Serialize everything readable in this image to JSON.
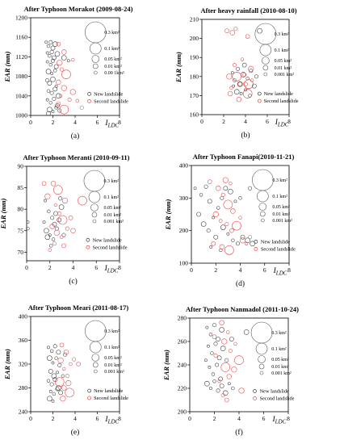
{
  "chart_data": [
    {
      "type": "scatter",
      "title": "After Typhoon Morakot (2009-08-24)",
      "caption": "(a)",
      "xlabel_main": "I",
      "xlabel_sub": "LDC",
      "ylabel": "EAR (mm)",
      "xlim": [
        0,
        8
      ],
      "ylim": [
        1000,
        1200
      ],
      "xticks": [
        0,
        2,
        4,
        6,
        8
      ],
      "yticks": [
        1000,
        1040,
        1080,
        1120,
        1160,
        1200
      ],
      "size_legend": [
        "0.3 km²",
        "0.1 km²",
        "0.05 km²",
        "0.01 km²",
        "0.00 1km²"
      ],
      "legend": [
        {
          "name": "New landslide",
          "color": "#333333"
        },
        {
          "name": "Second landslide",
          "color": "#e84040"
        }
      ],
      "new_landslide": [
        [
          1.4,
          1150
        ],
        [
          1.6,
          1142
        ],
        [
          1.8,
          1150
        ],
        [
          2.0,
          1138
        ],
        [
          2.2,
          1146
        ],
        [
          1.5,
          1128
        ],
        [
          1.7,
          1122
        ],
        [
          1.9,
          1130
        ],
        [
          2.1,
          1118
        ],
        [
          2.4,
          1126
        ],
        [
          1.5,
          1110
        ],
        [
          1.8,
          1104
        ],
        [
          2.0,
          1112
        ],
        [
          2.3,
          1100
        ],
        [
          1.6,
          1090
        ],
        [
          1.9,
          1086
        ],
        [
          2.2,
          1092
        ],
        [
          1.5,
          1072
        ],
        [
          1.7,
          1066
        ],
        [
          2.0,
          1074
        ],
        [
          2.3,
          1060
        ],
        [
          1.6,
          1050
        ],
        [
          1.9,
          1046
        ],
        [
          2.2,
          1054
        ],
        [
          2.5,
          1040
        ],
        [
          1.5,
          1032
        ],
        [
          1.8,
          1026
        ],
        [
          2.1,
          1034
        ],
        [
          2.4,
          1020
        ],
        [
          1.7,
          1012
        ],
        [
          2.0,
          1008
        ],
        [
          2.3,
          1016
        ],
        [
          2.6,
          1010
        ],
        [
          1.6,
          1004
        ],
        [
          3.0,
          1118
        ],
        [
          3.4,
          1112
        ]
      ],
      "second_landslide": [
        [
          2.5,
          1146
        ],
        [
          3.0,
          1130
        ],
        [
          2.6,
          1108
        ],
        [
          3.8,
          1114
        ],
        [
          2.8,
          1094
        ],
        [
          3.2,
          1084
        ],
        [
          2.5,
          1068
        ],
        [
          3.0,
          1056
        ],
        [
          2.7,
          1040
        ],
        [
          3.5,
          1032
        ],
        [
          2.5,
          1024
        ],
        [
          3.0,
          1012
        ],
        [
          3.8,
          1048
        ],
        [
          4.2,
          1030
        ],
        [
          4.6,
          1016
        ]
      ]
    },
    {
      "type": "scatter",
      "title": "After heavy rainfall (2010-08-10)",
      "caption": "(b)",
      "xlabel_main": "I",
      "xlabel_sub": "LDC",
      "ylabel": "EAR (mm)",
      "xlim": [
        0,
        8
      ],
      "ylim": [
        160,
        210
      ],
      "xticks": [
        0,
        2,
        4,
        6,
        8
      ],
      "yticks": [
        160,
        170,
        180,
        190,
        200,
        210
      ],
      "size_legend": [
        "0.3 km²",
        "0.1 km²",
        "0.05 km²",
        "0.01 km²",
        "0.001 km²"
      ],
      "legend": [
        {
          "name": "New landslide",
          "color": "#333333"
        },
        {
          "name": "Second landslide",
          "color": "#e84040"
        }
      ],
      "new_landslide": [
        [
          2.8,
          182
        ],
        [
          3.0,
          178
        ],
        [
          3.3,
          184
        ],
        [
          3.5,
          176
        ],
        [
          3.8,
          181
        ],
        [
          4.0,
          173
        ],
        [
          4.2,
          179
        ],
        [
          4.5,
          183
        ],
        [
          4.8,
          175
        ],
        [
          3.2,
          172
        ],
        [
          3.6,
          171
        ],
        [
          4.4,
          170
        ],
        [
          5.0,
          180
        ],
        [
          3.9,
          186
        ],
        [
          5.3,
          204
        ],
        [
          2.9,
          175
        ]
      ],
      "second_landslide": [
        [
          2.3,
          204
        ],
        [
          2.8,
          203
        ],
        [
          2.5,
          180
        ],
        [
          2.7,
          174
        ],
        [
          3.0,
          186
        ],
        [
          3.2,
          180
        ],
        [
          3.4,
          168
        ],
        [
          3.5,
          176
        ],
        [
          3.7,
          189
        ],
        [
          3.9,
          181
        ],
        [
          4.0,
          176
        ],
        [
          4.2,
          171
        ],
        [
          4.5,
          184
        ],
        [
          4.6,
          178
        ],
        [
          3.1,
          205
        ],
        [
          4.2,
          201
        ],
        [
          2.6,
          171
        ],
        [
          4.3,
          176
        ]
      ]
    },
    {
      "type": "scatter",
      "title": "After Typhoon Meranti (2010-09-11)",
      "caption": "(c)",
      "xlabel_main": "I",
      "xlabel_sub": "LDC",
      "ylabel": "EAR (mm)",
      "xlim": [
        0,
        8
      ],
      "ylim": [
        68,
        90
      ],
      "xticks": [
        0,
        2,
        4,
        6,
        8
      ],
      "yticks": [
        70,
        75,
        80,
        85,
        90
      ],
      "size_legend": [
        "0.3 km²",
        "0.1 km²",
        "0.05 km²",
        "0.01 km²",
        "0.001 km²"
      ],
      "legend": [
        {
          "name": "New landslide",
          "color": "#333333"
        },
        {
          "name": "Second landslide",
          "color": "#e84040"
        }
      ],
      "new_landslide": [
        [
          1.6,
          82.0
        ],
        [
          1.9,
          79.5
        ],
        [
          2.2,
          78.0
        ],
        [
          2.4,
          76.5
        ],
        [
          1.7,
          75.0
        ],
        [
          2.0,
          74.0
        ],
        [
          2.3,
          73.0
        ],
        [
          2.6,
          75.5
        ],
        [
          2.8,
          77.5
        ],
        [
          3.0,
          80.5
        ],
        [
          1.5,
          77.0
        ],
        [
          2.1,
          71.5
        ],
        [
          3.2,
          74.0
        ],
        [
          2.5,
          79.0
        ],
        [
          1.8,
          73.5
        ],
        [
          0.1,
          77.0
        ],
        [
          0.1,
          75.5
        ],
        [
          2.9,
          82.5
        ]
      ],
      "second_landslide": [
        [
          1.5,
          86.0
        ],
        [
          2.3,
          86.0
        ],
        [
          1.8,
          83.0
        ],
        [
          2.5,
          81.0
        ],
        [
          2.8,
          79.0
        ],
        [
          3.1,
          77.5
        ],
        [
          2.2,
          76.0
        ],
        [
          2.6,
          74.5
        ],
        [
          3.0,
          73.5
        ],
        [
          3.5,
          75.5
        ],
        [
          3.8,
          78.0
        ],
        [
          4.8,
          82.0
        ],
        [
          3.3,
          82.0
        ],
        [
          2.0,
          70.5
        ],
        [
          2.4,
          72.0
        ],
        [
          3.2,
          71.5
        ],
        [
          4.0,
          75.0
        ],
        [
          2.7,
          84.5
        ]
      ]
    },
    {
      "type": "scatter",
      "title": "After Typhoon Fanapi(2010-11-21)",
      "caption": "(d)",
      "xlabel_main": "I",
      "xlabel_sub": "LDC",
      "ylabel": "EAR (mm)",
      "xlim": [
        0,
        8
      ],
      "ylim": [
        100,
        400
      ],
      "xticks": [
        0,
        2,
        4,
        6,
        8
      ],
      "yticks": [
        100,
        200,
        300,
        400
      ],
      "size_legend": [
        "0.3 km²",
        "0.1 km²",
        "0.05 km²",
        "0.01 km²",
        "0.001 km²"
      ],
      "legend": [
        {
          "name": "New landslide",
          "color": "#333333"
        },
        {
          "name": "Second landslide",
          "color": "#e84040"
        }
      ],
      "new_landslide": [
        [
          0.3,
          330
        ],
        [
          0.8,
          310
        ],
        [
          1.2,
          335
        ],
        [
          1.5,
          290
        ],
        [
          1.0,
          220
        ],
        [
          1.8,
          240
        ],
        [
          2.2,
          270
        ],
        [
          2.5,
          300
        ],
        [
          2.8,
          330
        ],
        [
          3.2,
          320
        ],
        [
          3.6,
          290
        ],
        [
          4.0,
          300
        ],
        [
          1.4,
          200
        ],
        [
          2.0,
          180
        ],
        [
          2.6,
          210
        ],
        [
          3.0,
          190
        ],
        [
          3.4,
          170
        ],
        [
          3.8,
          160
        ],
        [
          4.2,
          180
        ],
        [
          4.6,
          170
        ],
        [
          1.6,
          150
        ],
        [
          2.4,
          140
        ],
        [
          4.8,
          330
        ],
        [
          0.6,
          250
        ],
        [
          5.0,
          160
        ]
      ],
      "second_landslide": [
        [
          1.5,
          350
        ],
        [
          2.2,
          330
        ],
        [
          2.8,
          355
        ],
        [
          3.2,
          345
        ],
        [
          2.6,
          310
        ],
        [
          3.0,
          280
        ],
        [
          3.4,
          260
        ],
        [
          2.0,
          250
        ],
        [
          2.4,
          230
        ],
        [
          2.9,
          220
        ],
        [
          3.3,
          200
        ],
        [
          3.7,
          215
        ],
        [
          4.2,
          170
        ],
        [
          4.5,
          160
        ],
        [
          4.8,
          180
        ],
        [
          1.8,
          160
        ],
        [
          2.5,
          150
        ],
        [
          3.1,
          140
        ],
        [
          4.0,
          240
        ]
      ]
    },
    {
      "type": "scatter",
      "title": "After Typhoon Meari (2011-08-17)",
      "caption": "(e)",
      "xlabel_main": "I",
      "xlabel_sub": "LDC",
      "ylabel": "EAR (mm)",
      "xlim": [
        0,
        8
      ],
      "ylim": [
        240,
        400
      ],
      "xticks": [
        0,
        2,
        4,
        6,
        8
      ],
      "yticks": [
        240,
        280,
        320,
        360,
        400
      ],
      "size_legend": [
        "0.3 km²",
        "0.1 km²",
        "0.05 km²",
        "0.01 km²",
        "0.001 km²"
      ],
      "legend": [
        {
          "name": "New landslide",
          "color": "#333333"
        },
        {
          "name": "Second landslide",
          "color": "#e84040"
        }
      ],
      "new_landslide": [
        [
          1.6,
          348
        ],
        [
          1.9,
          342
        ],
        [
          2.2,
          350
        ],
        [
          2.5,
          340
        ],
        [
          1.7,
          330
        ],
        [
          2.0,
          322
        ],
        [
          2.3,
          330
        ],
        [
          2.6,
          318
        ],
        [
          1.8,
          308
        ],
        [
          2.1,
          300
        ],
        [
          2.4,
          306
        ],
        [
          1.6,
          292
        ],
        [
          1.9,
          286
        ],
        [
          2.2,
          294
        ],
        [
          2.5,
          280
        ],
        [
          1.8,
          274
        ],
        [
          2.1,
          270
        ],
        [
          2.4,
          278
        ],
        [
          2.7,
          272
        ],
        [
          1.7,
          262
        ],
        [
          2.0,
          258
        ],
        [
          2.9,
          300
        ],
        [
          3.1,
          336
        ]
      ],
      "second_landslide": [
        [
          2.8,
          352
        ],
        [
          3.2,
          340
        ],
        [
          2.7,
          326
        ],
        [
          3.0,
          312
        ],
        [
          3.3,
          300
        ],
        [
          2.6,
          290
        ],
        [
          3.0,
          280
        ],
        [
          3.4,
          288
        ],
        [
          3.6,
          320
        ],
        [
          3.9,
          328
        ],
        [
          4.3,
          320
        ],
        [
          3.5,
          272
        ],
        [
          2.9,
          262
        ]
      ]
    },
    {
      "type": "scatter",
      "title": "After Typhoon Nanmadol (2011-10-24)",
      "caption": "(f)",
      "xlabel_main": "I",
      "xlabel_sub": "LDC",
      "ylabel": "EAR (mm)",
      "xlim": [
        0,
        8
      ],
      "ylim": [
        200,
        280
      ],
      "xticks": [
        0,
        2,
        4,
        6,
        8
      ],
      "yticks": [
        200,
        220,
        240,
        260,
        280
      ],
      "size_legend": [
        "0.3 km²",
        "0.1 km²",
        "0.05 km²",
        "0.01 km²",
        "0.001 km²"
      ],
      "legend": [
        {
          "name": "New landslide",
          "color": "#333333"
        },
        {
          "name": "Second landslide",
          "color": "#e84040"
        }
      ],
      "new_landslide": [
        [
          1.4,
          272
        ],
        [
          1.7,
          266
        ],
        [
          2.0,
          274
        ],
        [
          2.3,
          262
        ],
        [
          2.6,
          270
        ],
        [
          1.5,
          256
        ],
        [
          1.8,
          250
        ],
        [
          2.1,
          258
        ],
        [
          2.4,
          246
        ],
        [
          2.7,
          254
        ],
        [
          1.6,
          238
        ],
        [
          1.9,
          232
        ],
        [
          2.2,
          240
        ],
        [
          2.5,
          228
        ],
        [
          1.4,
          224
        ],
        [
          1.7,
          220
        ],
        [
          2.0,
          226
        ],
        [
          2.3,
          218
        ],
        [
          2.6,
          222
        ],
        [
          2.9,
          216
        ],
        [
          3.2,
          224
        ],
        [
          3.5,
          220
        ],
        [
          3.0,
          244
        ],
        [
          3.4,
          262
        ],
        [
          4.6,
          268
        ],
        [
          1.3,
          244
        ]
      ],
      "second_landslide": [
        [
          2.0,
          264
        ],
        [
          2.6,
          276
        ],
        [
          2.8,
          260
        ],
        [
          3.1,
          268
        ],
        [
          3.3,
          252
        ],
        [
          2.9,
          238
        ],
        [
          3.2,
          230
        ],
        [
          3.6,
          236
        ],
        [
          2.4,
          226
        ],
        [
          2.7,
          214
        ],
        [
          3.0,
          210
        ],
        [
          4.0,
          244
        ],
        [
          4.2,
          218
        ],
        [
          3.7,
          258
        ],
        [
          2.1,
          248
        ]
      ]
    }
  ]
}
